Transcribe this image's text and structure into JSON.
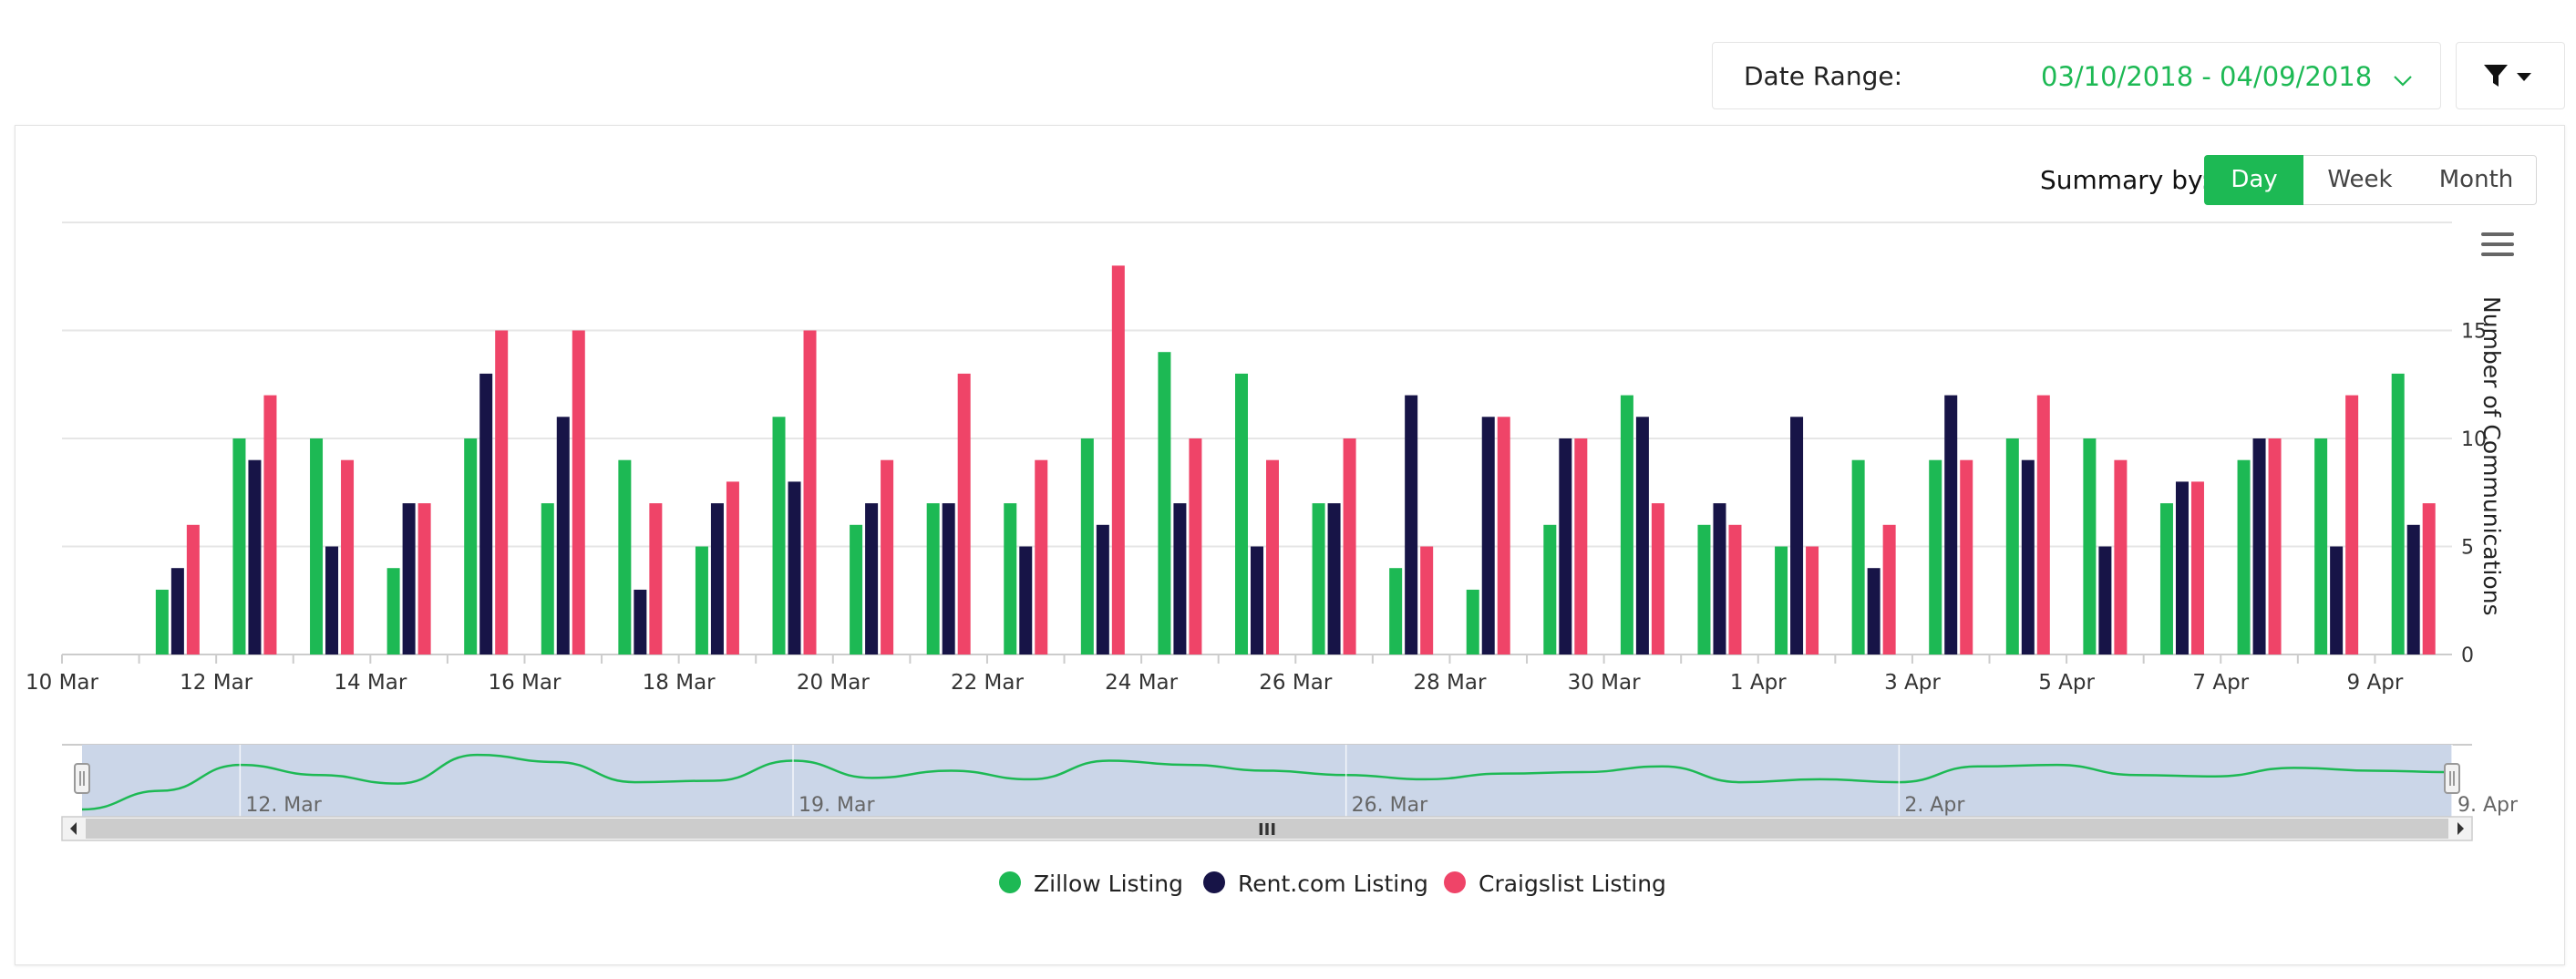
{
  "header": {
    "date_range_label": "Date Range:",
    "date_range_value": "03/10/2018 - 04/09/2018",
    "date_chevron_icon": "chevron-down-icon",
    "filter_icon": "filter-icon"
  },
  "summary": {
    "label": "Summary by:",
    "options": [
      "Day",
      "Week",
      "Month"
    ],
    "selected": "Day"
  },
  "menu_icon": "hamburger-menu-icon",
  "navigator": {
    "labels": [
      "12. Mar",
      "19. Mar",
      "26. Mar",
      "2. Apr",
      "9. Apr"
    ],
    "scroll_grip": "III"
  },
  "colors": {
    "zillow": "#1db954",
    "rent": "#171447",
    "craigslist": "#ef4468",
    "navigator_fill": "#cbd6e8",
    "accent": "#1db954"
  },
  "chart_data": {
    "type": "bar",
    "x": [
      "10 Mar",
      "11 Mar",
      "12 Mar",
      "13 Mar",
      "14 Mar",
      "15 Mar",
      "16 Mar",
      "17 Mar",
      "18 Mar",
      "19 Mar",
      "20 Mar",
      "21 Mar",
      "22 Mar",
      "23 Mar",
      "24 Mar",
      "25 Mar",
      "26 Mar",
      "27 Mar",
      "28 Mar",
      "29 Mar",
      "30 Mar",
      "31 Mar",
      "1 Apr",
      "2 Apr",
      "3 Apr",
      "4 Apr",
      "5 Apr",
      "6 Apr",
      "7 Apr",
      "8 Apr",
      "9 Apr"
    ],
    "tick_labels": [
      "10 Mar",
      "12 Mar",
      "14 Mar",
      "16 Mar",
      "18 Mar",
      "20 Mar",
      "22 Mar",
      "24 Mar",
      "26 Mar",
      "28 Mar",
      "30 Mar",
      "1 Apr",
      "3 Apr",
      "5 Apr",
      "7 Apr",
      "9 Apr"
    ],
    "series": [
      {
        "name": "Zillow Listing",
        "values": [
          0,
          3,
          10,
          10,
          4,
          10,
          7,
          9,
          5,
          11,
          6,
          7,
          7,
          10,
          14,
          13,
          7,
          4,
          3,
          6,
          12,
          6,
          5,
          9,
          9,
          10,
          10,
          7,
          9,
          10,
          13
        ]
      },
      {
        "name": "Rent.com Listing",
        "values": [
          0,
          4,
          9,
          5,
          7,
          13,
          11,
          3,
          7,
          8,
          7,
          7,
          5,
          6,
          7,
          5,
          7,
          12,
          11,
          10,
          11,
          7,
          11,
          4,
          12,
          9,
          5,
          8,
          10,
          5,
          6
        ]
      },
      {
        "name": "Craigslist Listing",
        "values": [
          0,
          6,
          12,
          9,
          7,
          15,
          15,
          7,
          8,
          15,
          9,
          13,
          9,
          18,
          10,
          9,
          10,
          5,
          11,
          10,
          7,
          6,
          5,
          6,
          9,
          12,
          9,
          8,
          10,
          12,
          7
        ]
      }
    ],
    "ylabel": "Number of Communications",
    "yticks": [
      0,
      5,
      10,
      15
    ],
    "ylim": [
      0,
      20
    ],
    "grid": true,
    "legend": "bottom-center"
  }
}
